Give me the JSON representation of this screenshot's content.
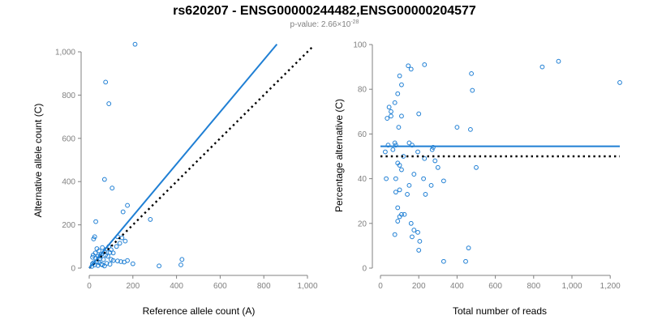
{
  "title": "rs620207 - ENSG00000244482,ENSG00000204577",
  "subtitle": {
    "prefix": "p-value: 2.66×10",
    "exponent": "-28"
  },
  "colors": {
    "accent": "#1f7fd4",
    "axis": "#808080",
    "text": "#000000",
    "reference": "#000000"
  },
  "chart_data": [
    {
      "type": "scatter",
      "xlabel": "Reference allele count (A)",
      "ylabel": "Alternative allele count (C)",
      "xlim": [
        0,
        1000
      ],
      "ylim": [
        0,
        1000
      ],
      "xticks": [
        0,
        200,
        400,
        600,
        800,
        1000
      ],
      "yticks": [
        0,
        200,
        400,
        600,
        800,
        1000
      ],
      "xtick_labels": [
        "0",
        "200",
        "400",
        "600",
        "800",
        "1,000"
      ],
      "ytick_labels": [
        "0",
        "200",
        "400",
        "600",
        "800",
        "1,000"
      ],
      "grid": false,
      "fit_line": {
        "x": [
          0,
          860
        ],
        "y": [
          0,
          1035
        ]
      },
      "reference_line": {
        "x": [
          0,
          1030
        ],
        "y": [
          0,
          1030
        ]
      },
      "points": [
        [
          210,
          1035
        ],
        [
          75,
          860
        ],
        [
          90,
          760
        ],
        [
          70,
          410
        ],
        [
          105,
          370
        ],
        [
          175,
          290
        ],
        [
          155,
          260
        ],
        [
          280,
          225
        ],
        [
          30,
          215
        ],
        [
          25,
          145
        ],
        [
          20,
          135
        ],
        [
          130,
          145
        ],
        [
          150,
          140
        ],
        [
          165,
          125
        ],
        [
          140,
          115
        ],
        [
          125,
          100
        ],
        [
          90,
          100
        ],
        [
          60,
          95
        ],
        [
          80,
          88
        ],
        [
          100,
          85
        ],
        [
          35,
          90
        ],
        [
          45,
          80
        ],
        [
          70,
          75
        ],
        [
          95,
          72
        ],
        [
          110,
          70
        ],
        [
          55,
          65
        ],
        [
          75,
          60
        ],
        [
          85,
          55
        ],
        [
          40,
          55
        ],
        [
          15,
          50
        ],
        [
          30,
          45
        ],
        [
          50,
          45
        ],
        [
          65,
          40
        ],
        [
          100,
          40
        ],
        [
          110,
          35
        ],
        [
          130,
          33
        ],
        [
          145,
          30
        ],
        [
          160,
          28
        ],
        [
          175,
          35
        ],
        [
          200,
          20
        ],
        [
          15,
          20
        ],
        [
          25,
          15
        ],
        [
          40,
          12
        ],
        [
          55,
          18
        ],
        [
          70,
          10
        ],
        [
          20,
          25
        ],
        [
          35,
          30
        ],
        [
          12,
          8
        ],
        [
          45,
          25
        ],
        [
          60,
          15
        ],
        [
          80,
          22
        ],
        [
          95,
          18
        ],
        [
          320,
          10
        ],
        [
          420,
          15
        ],
        [
          425,
          40
        ],
        [
          18,
          60
        ],
        [
          28,
          70
        ],
        [
          50,
          55
        ]
      ]
    },
    {
      "type": "scatter",
      "xlabel": "Total number of reads",
      "ylabel": "Percentage alternative (C)",
      "xlim": [
        0,
        1250
      ],
      "ylim": [
        0,
        100
      ],
      "xticks": [
        0,
        200,
        400,
        600,
        800,
        1000,
        1200
      ],
      "yticks": [
        0,
        20,
        40,
        60,
        80,
        100
      ],
      "xtick_labels": [
        "0",
        "200",
        "400",
        "600",
        "800",
        "1,000",
        "1,200"
      ],
      "ytick_labels": [
        "0",
        "20",
        "40",
        "60",
        "80",
        "100"
      ],
      "grid": false,
      "fit_line": {
        "x": [
          0,
          1250
        ],
        "y": [
          54.5,
          54.5
        ]
      },
      "reference_line": {
        "x": [
          0,
          1250
        ],
        "y": [
          50,
          50
        ]
      },
      "points": [
        [
          1250,
          83
        ],
        [
          930,
          92.5
        ],
        [
          845,
          90
        ],
        [
          480,
          79.5
        ],
        [
          475,
          87
        ],
        [
          470,
          62
        ],
        [
          230,
          91
        ],
        [
          145,
          90.5
        ],
        [
          160,
          89
        ],
        [
          100,
          86
        ],
        [
          110,
          82
        ],
        [
          90,
          78
        ],
        [
          45,
          72
        ],
        [
          55,
          70
        ],
        [
          75,
          74
        ],
        [
          35,
          67
        ],
        [
          55,
          68
        ],
        [
          110,
          68
        ],
        [
          200,
          69
        ],
        [
          95,
          63
        ],
        [
          400,
          63
        ],
        [
          150,
          56
        ],
        [
          165,
          55
        ],
        [
          80,
          55
        ],
        [
          25,
          52
        ],
        [
          40,
          55
        ],
        [
          75,
          56
        ],
        [
          65,
          53
        ],
        [
          195,
          52
        ],
        [
          270,
          53
        ],
        [
          275,
          54
        ],
        [
          285,
          48
        ],
        [
          230,
          49
        ],
        [
          120,
          50
        ],
        [
          100,
          46
        ],
        [
          90,
          47
        ],
        [
          110,
          44
        ],
        [
          80,
          40
        ],
        [
          30,
          40
        ],
        [
          175,
          42
        ],
        [
          225,
          40
        ],
        [
          500,
          45
        ],
        [
          300,
          45
        ],
        [
          330,
          39
        ],
        [
          265,
          37
        ],
        [
          150,
          37
        ],
        [
          100,
          35
        ],
        [
          80,
          34
        ],
        [
          235,
          33
        ],
        [
          140,
          33
        ],
        [
          90,
          27
        ],
        [
          110,
          24
        ],
        [
          100,
          23
        ],
        [
          125,
          24
        ],
        [
          90,
          21
        ],
        [
          160,
          20
        ],
        [
          175,
          17
        ],
        [
          195,
          16
        ],
        [
          165,
          14
        ],
        [
          205,
          12
        ],
        [
          75,
          15
        ],
        [
          200,
          8
        ],
        [
          460,
          9
        ],
        [
          330,
          3
        ],
        [
          445,
          3
        ]
      ]
    }
  ]
}
